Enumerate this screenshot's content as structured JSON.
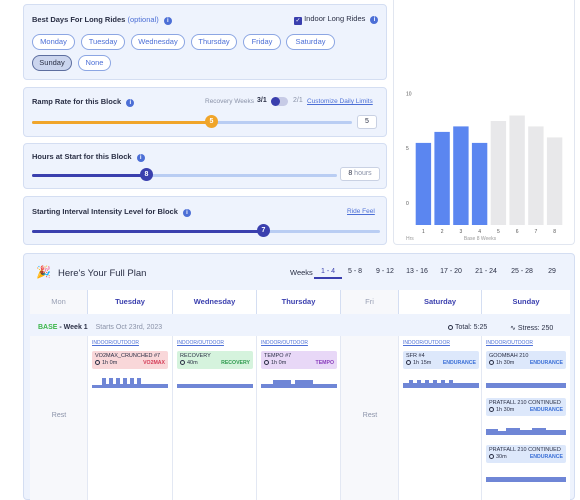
{
  "best_days": {
    "title": "Best Days For Long Rides",
    "optional": "(optional)",
    "indoor_label": "Indoor Long Rides",
    "indoor_checked": true,
    "days": [
      "Monday",
      "Tuesday",
      "Wednesday",
      "Thursday",
      "Friday",
      "Saturday",
      "Sunday",
      "None"
    ],
    "selected": "Sunday"
  },
  "ramp": {
    "title": "Ramp Rate for this Block",
    "recovery_label": "Recovery Weeks",
    "recovery_a": "3/1",
    "recovery_b": "2/1",
    "customize_link": "Customize Daily Limits",
    "value": "5",
    "knob": "5",
    "level": 0.58
  },
  "hours": {
    "title": "Hours at Start for this Block",
    "value": "8",
    "unit": "hours",
    "knob": "8",
    "level": 0.33
  },
  "intensity": {
    "title": "Starting Interval Intensity Level for Block",
    "ride_feel": "Ride Feel",
    "knob": "7",
    "level": 0.66
  },
  "chart_data": {
    "type": "bar",
    "categories": [
      "1",
      "2",
      "3",
      "4",
      "5",
      "6",
      "7",
      "8"
    ],
    "values": [
      7.5,
      8.5,
      9,
      7.5,
      9.5,
      10,
      9,
      8
    ],
    "highlighted_count": 4,
    "yticks": [
      "10",
      "5",
      "0"
    ],
    "ylim": [
      0,
      10.5
    ],
    "y_unit": "Hrs",
    "xlabel": "Base 8 Weeks",
    "colors": {
      "active": "#5b86f0",
      "inactive": "#e8e8ea"
    }
  },
  "plan": {
    "title": "Here's Your Full Plan",
    "weeks_label": "Weeks",
    "week_ranges": [
      "1 - 4",
      "5 - 8",
      "9 - 12",
      "13 - 16",
      "17 - 20",
      "21 - 24",
      "25 - 28",
      "29"
    ],
    "active_range": "1 - 4",
    "days": [
      "Mon",
      "Tuesday",
      "Wednesday",
      "Thursday",
      "Fri",
      "Saturday",
      "Sunday"
    ],
    "phase": "BASE",
    "week": "- Week 1",
    "starts": "Starts Oct 23rd, 2023",
    "total": "Total: 5:25",
    "stress": "Stress: 250",
    "rest_label": "Rest",
    "category": "INDOOR/OUTDOOR",
    "workouts": {
      "tue": {
        "name": "VO2MAX_CRUNCHED #7",
        "dur": "1h 0m",
        "tag": "VO2MAX",
        "color": "#f9d7d9",
        "tagcolor": "#d43b57"
      },
      "wed": {
        "name": "RECOVERY",
        "dur": "40m",
        "tag": "RECOVERY",
        "color": "#d5f3dd",
        "tagcolor": "#2e9a4e"
      },
      "thu": {
        "name": "TEMPO #7",
        "dur": "1h 0m",
        "tag": "TEMPO",
        "color": "#e8d8f7",
        "tagcolor": "#8a3dbd"
      },
      "sat": {
        "name": "SFR #4",
        "dur": "1h 15m",
        "tag": "ENDURANCE",
        "color": "#dde8fb",
        "tagcolor": "#3a6fd6"
      },
      "sun1": {
        "name": "GOOMBAH 210",
        "dur": "1h 30m",
        "tag": "ENDURANCE",
        "color": "#dde8fb",
        "tagcolor": "#3a6fd6"
      },
      "sun2": {
        "name": "PRATFALL 210 CONTINUED",
        "dur": "1h 30m",
        "tag": "ENDURANCE",
        "color": "#dde8fb",
        "tagcolor": "#3a6fd6"
      },
      "sun3": {
        "name": "PRATFALL 210 CONTINUED",
        "dur": "30m",
        "tag": "ENDURANCE",
        "color": "#dde8fb",
        "tagcolor": "#3a6fd6"
      }
    }
  }
}
